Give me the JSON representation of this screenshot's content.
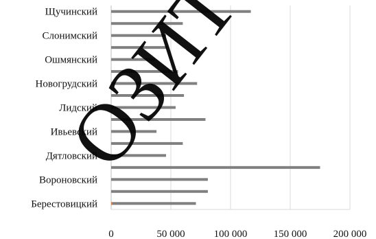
{
  "chart_data": {
    "type": "bar",
    "orientation": "horizontal",
    "grid": true,
    "xlim": [
      0,
      200000
    ],
    "x_ticks": [
      0,
      50000,
      100000,
      150000,
      200000
    ],
    "x_tick_labels": [
      "0",
      "50 000",
      "100 000",
      "150 000",
      "200 000"
    ],
    "categories": [
      "Щучинский",
      "",
      "Слонимский",
      "",
      "Ошмянский",
      "",
      "Новогрудский",
      "",
      "Лидский",
      "",
      "Ивьевский",
      "",
      "Дятловский",
      "",
      "Вороновский",
      "",
      "Берестовицкий"
    ],
    "series": [
      {
        "color": "#808080",
        "values": [
          117000,
          60000,
          46000,
          47000,
          37000,
          56000,
          72000,
          61000,
          54000,
          79000,
          38000,
          60000,
          46000,
          175000,
          81000,
          81000,
          71000
        ]
      },
      {
        "color": "#ED7D31",
        "values": [
          0,
          0,
          0,
          0,
          0,
          0,
          0,
          0,
          0,
          0,
          0,
          0,
          0,
          0,
          0,
          0,
          1000
        ]
      }
    ],
    "watermark": "ОЗИТ"
  }
}
